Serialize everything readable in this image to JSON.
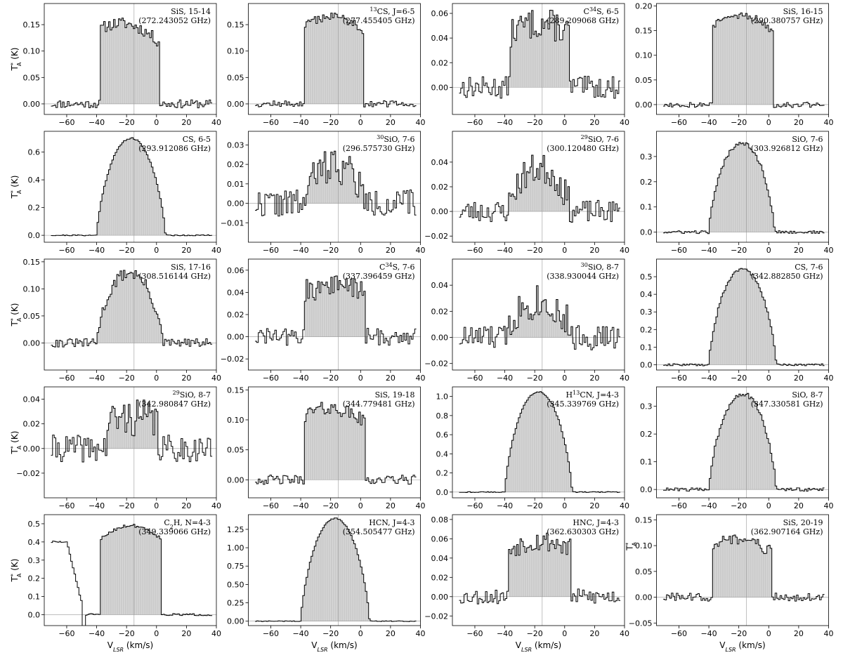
{
  "figure": {
    "x_label_parts": [
      "V",
      "LSR",
      " (km/s)"
    ],
    "y_label_parts": [
      "T",
      "*",
      "A",
      " (K)"
    ]
  },
  "chart_data": [
    {
      "type": "line",
      "line": "SiS, 15-14",
      "freq": "(272.243052 GHz)",
      "xlim": [
        -75,
        40
      ],
      "ylim": [
        -0.02,
        0.19
      ],
      "yticks": [
        0,
        0.05,
        0.1,
        0.15
      ],
      "xticks": [
        -60,
        -40,
        -20,
        0,
        20,
        40
      ],
      "v0": -15,
      "profile": {
        "shape": "flat",
        "peak": 0.165,
        "lo": -38,
        "hi": 2,
        "tilt": 0.35,
        "noise": 0.008,
        "seed": 11
      },
      "grid": false
    },
    {
      "type": "line",
      "line_parts": [
        "13",
        "CS, J=6-5"
      ],
      "freq": "(277.455405 GHz)",
      "xlim": [
        -75,
        40
      ],
      "ylim": [
        -0.02,
        0.19
      ],
      "yticks": [
        0,
        0.05,
        0.1,
        0.15
      ],
      "xticks": [
        -60,
        -40,
        -20,
        0,
        20,
        40
      ],
      "v0": -15,
      "profile": {
        "shape": "flat",
        "peak": 0.17,
        "lo": -38,
        "hi": 2,
        "tilt": 0.1,
        "noise": 0.006,
        "seed": 12
      },
      "grid": false
    },
    {
      "type": "line",
      "line_parts": [
        "C",
        "34",
        "S, 6-5"
      ],
      "freq": "(289.209068 GHz)",
      "xlim": [
        -75,
        40
      ],
      "ylim": [
        -0.022,
        0.068
      ],
      "yticks": [
        0,
        0.02,
        0.04,
        0.06
      ],
      "xticks": [
        -60,
        -40,
        -20,
        0,
        20,
        40
      ],
      "v0": -15,
      "profile": {
        "shape": "flat",
        "peak": 0.052,
        "lo": -36,
        "hi": 3,
        "tilt": 0,
        "noise": 0.009,
        "seed": 13
      },
      "grid": false
    },
    {
      "type": "line",
      "line": "SiS, 16-15",
      "freq": "(290.380757 GHz)",
      "xlim": [
        -75,
        40
      ],
      "ylim": [
        -0.02,
        0.205
      ],
      "yticks": [
        0,
        0.05,
        0.1,
        0.15,
        0.2
      ],
      "xticks": [
        -60,
        -40,
        -20,
        0,
        20,
        40
      ],
      "v0": -15,
      "profile": {
        "shape": "flat",
        "peak": 0.185,
        "lo": -38,
        "hi": 3,
        "tilt": 0.1,
        "noise": 0.006,
        "seed": 14
      },
      "grid": false
    },
    {
      "type": "line",
      "line": "CS, 6-5",
      "freq": "(293.912086 GHz)",
      "xlim": [
        -75,
        40
      ],
      "ylim": [
        -0.05,
        0.75
      ],
      "yticks": [
        0,
        0.2,
        0.4,
        0.6
      ],
      "xticks": [
        -60,
        -40,
        -20,
        0,
        20,
        40
      ],
      "v0": -15,
      "profile": {
        "shape": "para",
        "peak": 0.7,
        "lo": -40,
        "hi": 6,
        "tilt": 0,
        "noise": 0.004,
        "seed": 21
      },
      "grid": false
    },
    {
      "type": "line",
      "line_parts": [
        "30",
        "SiO, 7-6"
      ],
      "freq": "(296.575730 GHz)",
      "xlim": [
        -75,
        40
      ],
      "ylim": [
        -0.02,
        0.037
      ],
      "yticks": [
        -0.01,
        0,
        0.01,
        0.02,
        0.03
      ],
      "xticks": [
        -60,
        -40,
        -20,
        0,
        20,
        40
      ],
      "v0": -15,
      "profile": {
        "shape": "para",
        "peak": 0.02,
        "lo": -38,
        "hi": 3,
        "tilt": 0,
        "noise": 0.007,
        "seed": 22
      },
      "grid": false
    },
    {
      "type": "line",
      "line_parts": [
        "29",
        "SiO, 7-6"
      ],
      "freq": "(300.120480 GHz)",
      "xlim": [
        -75,
        40
      ],
      "ylim": [
        -0.025,
        0.065
      ],
      "yticks": [
        -0.02,
        0,
        0.02,
        0.04
      ],
      "xticks": [
        -60,
        -40,
        -20,
        0,
        20,
        40
      ],
      "v0": -15,
      "profile": {
        "shape": "para",
        "peak": 0.035,
        "lo": -38,
        "hi": 4,
        "tilt": 0,
        "noise": 0.009,
        "seed": 23
      },
      "grid": false
    },
    {
      "type": "line",
      "line": "SiO, 7-6",
      "freq": "(303.926812 GHz)",
      "xlim": [
        -75,
        40
      ],
      "ylim": [
        -0.04,
        0.4
      ],
      "yticks": [
        0,
        0.1,
        0.2,
        0.3
      ],
      "xticks": [
        -60,
        -40,
        -20,
        0,
        20,
        40
      ],
      "v0": -15,
      "profile": {
        "shape": "para",
        "peak": 0.355,
        "lo": -40,
        "hi": 4,
        "tilt": 0,
        "noise": 0.006,
        "seed": 24
      },
      "grid": false
    },
    {
      "type": "line",
      "line": "SiS, 17-16",
      "freq": "(308.516144 GHz)",
      "xlim": [
        -75,
        40
      ],
      "ylim": [
        -0.05,
        0.155
      ],
      "yticks": [
        0,
        0.05,
        0.1,
        0.15
      ],
      "xticks": [
        -60,
        -40,
        -20,
        0,
        20,
        40
      ],
      "v0": -15,
      "profile": {
        "shape": "para",
        "peak": 0.13,
        "lo": -40,
        "hi": 4,
        "tilt": 0,
        "noise": 0.008,
        "seed": 31
      },
      "grid": false
    },
    {
      "type": "line",
      "line_parts": [
        "C",
        "34",
        "S, 7-6"
      ],
      "freq": "(337.396459 GHz)",
      "xlim": [
        -75,
        40
      ],
      "ylim": [
        -0.03,
        0.07
      ],
      "yticks": [
        -0.02,
        0,
        0.02,
        0.04,
        0.06
      ],
      "xticks": [
        -60,
        -40,
        -20,
        0,
        20,
        40
      ],
      "v0": -15,
      "profile": {
        "shape": "flat",
        "peak": 0.047,
        "lo": -37,
        "hi": 3,
        "tilt": 0,
        "noise": 0.008,
        "seed": 32
      },
      "grid": false
    },
    {
      "type": "line",
      "line_parts": [
        "30",
        "SiO, 8-7"
      ],
      "freq": "(338.930044 GHz)",
      "xlim": [
        -75,
        40
      ],
      "ylim": [
        -0.025,
        0.06
      ],
      "yticks": [
        -0.02,
        0,
        0.02,
        0.04
      ],
      "xticks": [
        -60,
        -40,
        -20,
        0,
        20,
        40
      ],
      "v0": -15,
      "profile": {
        "shape": "para",
        "peak": 0.028,
        "lo": -40,
        "hi": 5,
        "tilt": 0,
        "noise": 0.01,
        "seed": 33
      },
      "grid": false
    },
    {
      "type": "line",
      "line": "CS, 7-6",
      "freq": "(342.882850 GHz)",
      "xlim": [
        -75,
        40
      ],
      "ylim": [
        -0.03,
        0.6
      ],
      "yticks": [
        0,
        0.1,
        0.2,
        0.3,
        0.4,
        0.5
      ],
      "xticks": [
        -60,
        -40,
        -20,
        0,
        20,
        40
      ],
      "v0": -15,
      "profile": {
        "shape": "para",
        "peak": 0.545,
        "lo": -40,
        "hi": 5,
        "tilt": 0,
        "noise": 0.006,
        "seed": 34
      },
      "grid": false
    },
    {
      "type": "line",
      "line_parts": [
        "29",
        "SiO, 8-7"
      ],
      "freq": "(342.980847 GHz)",
      "xlim": [
        -75,
        40
      ],
      "ylim": [
        -0.04,
        0.05
      ],
      "yticks": [
        -0.02,
        0,
        0.02,
        0.04
      ],
      "xticks": [
        -60,
        -40,
        -20,
        0,
        20,
        40
      ],
      "v0": -15,
      "profile": {
        "shape": "flat",
        "peak": 0.025,
        "lo": -33,
        "hi": 1,
        "tilt": 0,
        "noise": 0.011,
        "seed": 41
      },
      "grid": false
    },
    {
      "type": "line",
      "line": "SiS, 19-18",
      "freq": "(344.779481 GHz)",
      "xlim": [
        -75,
        40
      ],
      "ylim": [
        -0.03,
        0.155
      ],
      "yticks": [
        0,
        0.05,
        0.1,
        0.15
      ],
      "xticks": [
        -60,
        -40,
        -20,
        0,
        20,
        40
      ],
      "v0": -15,
      "profile": {
        "shape": "flat",
        "peak": 0.125,
        "lo": -38,
        "hi": 3,
        "tilt": 0.2,
        "noise": 0.008,
        "seed": 42
      },
      "grid": false
    },
    {
      "type": "line",
      "line_parts": [
        "H",
        "13",
        "CN, J=4-3"
      ],
      "freq": "(345.339769 GHz)",
      "xlim": [
        -75,
        40
      ],
      "ylim": [
        -0.06,
        1.1
      ],
      "yticks": [
        0,
        0.2,
        0.4,
        0.6,
        0.8,
        1.0
      ],
      "xticks": [
        -60,
        -40,
        -20,
        0,
        20,
        40
      ],
      "v0": -15,
      "profile": {
        "shape": "para",
        "peak": 1.05,
        "lo": -40,
        "hi": 5,
        "tilt": 0,
        "noise": 0.005,
        "seed": 43
      },
      "grid": false
    },
    {
      "type": "line",
      "line": "SiO, 8-7",
      "freq": "(347.330581 GHz)",
      "xlim": [
        -75,
        40
      ],
      "ylim": [
        -0.03,
        0.37
      ],
      "yticks": [
        0,
        0.1,
        0.2,
        0.3
      ],
      "xticks": [
        -60,
        -40,
        -20,
        0,
        20,
        40
      ],
      "v0": -15,
      "profile": {
        "shape": "para",
        "peak": 0.345,
        "lo": -40,
        "hi": 5,
        "tilt": 0,
        "noise": 0.006,
        "seed": 44
      },
      "grid": false
    },
    {
      "type": "line",
      "line_parts": [
        "C",
        "2",
        "H, N=4-3"
      ],
      "freq": "(349.339066 GHz)",
      "xlim": [
        -75,
        40
      ],
      "ylim": [
        -0.06,
        0.55
      ],
      "yticks": [
        0,
        0.1,
        0.2,
        0.3,
        0.4,
        0.5
      ],
      "xticks": [
        -60,
        -40,
        -20,
        0,
        20,
        40
      ],
      "v0": -15,
      "profile": {
        "shape": "flat",
        "peak": 0.49,
        "lo": -37,
        "hi": 3,
        "tilt": 0,
        "noise": 0.006,
        "seed": 51,
        "c2h": true
      },
      "grid": false
    },
    {
      "type": "line",
      "line": "HCN, J=4-3",
      "freq": "(354.505477 GHz)",
      "xlim": [
        -75,
        40
      ],
      "ylim": [
        -0.06,
        1.45
      ],
      "yticks": [
        0,
        0.25,
        0.5,
        0.75,
        1.0,
        1.25
      ],
      "ytick_labels": [
        "0.00",
        "0.25",
        "0.50",
        "0.75",
        "1.00",
        "1.25"
      ],
      "xticks": [
        -60,
        -40,
        -20,
        0,
        20,
        40
      ],
      "v0": -15,
      "profile": {
        "shape": "para",
        "peak": 1.4,
        "lo": -40,
        "hi": 6,
        "tilt": 0,
        "noise": 0.005,
        "seed": 52
      },
      "grid": false
    },
    {
      "type": "line",
      "line": "HNC, J=4-3",
      "freq": "(362.630303 GHz)",
      "xlim": [
        -75,
        40
      ],
      "ylim": [
        -0.03,
        0.085
      ],
      "yticks": [
        -0.02,
        0,
        0.02,
        0.04,
        0.06,
        0.08
      ],
      "xticks": [
        -60,
        -40,
        -20,
        0,
        20,
        40
      ],
      "v0": -15,
      "profile": {
        "shape": "flat",
        "peak": 0.058,
        "lo": -37,
        "hi": 4,
        "tilt": 0,
        "noise": 0.008,
        "seed": 53
      },
      "grid": false
    },
    {
      "type": "line",
      "line": "SiS, 20-19",
      "freq": "(362.907164 GHz)",
      "xlim": [
        -75,
        40
      ],
      "ylim": [
        -0.055,
        0.16
      ],
      "yticks": [
        -0.05,
        0,
        0.05,
        0.1,
        0.15
      ],
      "xticks": [
        -60,
        -40,
        -20,
        0,
        20,
        40
      ],
      "v0": -15,
      "profile": {
        "shape": "flat",
        "peak": 0.12,
        "lo": -38,
        "hi": 2,
        "tilt": 0.3,
        "noise": 0.008,
        "seed": 54
      },
      "grid": false
    }
  ]
}
